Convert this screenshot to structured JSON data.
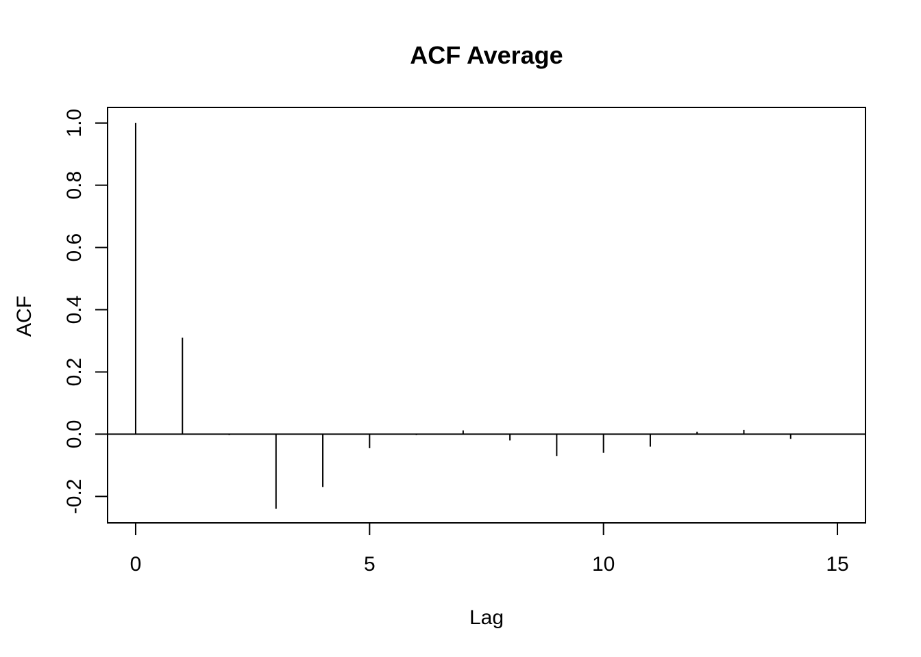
{
  "chart_data": {
    "type": "bar",
    "title": "ACF Average",
    "xlabel": "Lag",
    "ylabel": "ACF",
    "x": [
      0,
      1,
      2,
      3,
      4,
      5,
      6,
      7,
      8,
      9,
      10,
      11,
      12,
      13,
      14
    ],
    "values": [
      1.0,
      0.31,
      -0.003,
      -0.24,
      -0.17,
      -0.045,
      -0.003,
      0.012,
      -0.02,
      -0.07,
      -0.06,
      -0.04,
      0.008,
      0.014,
      -0.015
    ],
    "xlim": [
      -0.6,
      15.6
    ],
    "ylim": [
      -0.285,
      1.05
    ],
    "xticks": [
      0,
      5,
      10,
      15
    ],
    "yticks": [
      -0.2,
      0.0,
      0.2,
      0.4,
      0.6,
      0.8,
      1.0
    ],
    "xtick_labels": [
      "0",
      "5",
      "10",
      "15"
    ],
    "ytick_labels": [
      "-0.2",
      "0.0",
      "0.2",
      "0.4",
      "0.6",
      "0.8",
      "1.0"
    ],
    "zero_line": true,
    "grid": false,
    "color": "#000000"
  }
}
